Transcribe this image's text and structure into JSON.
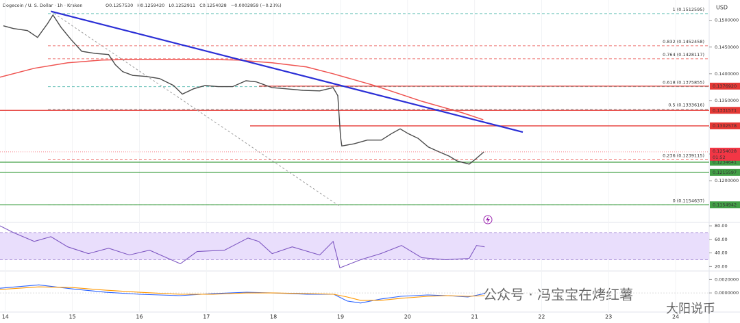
{
  "header": {
    "symbol": "Dogecoin / U. S. Dollar · 1h · Kraken",
    "ohlc": [
      "O0.1257530",
      "H0.1259420",
      "L0.1252911",
      "C0.1254028",
      "−0.0002859 (−0.23%)"
    ]
  },
  "currency": "USD",
  "watermark": [
    "公众号 · 冯宝宝在烤红薯",
    "大阳说币"
  ],
  "chart_data": [
    {
      "type": "line",
      "x": [
        13.97,
        14.12,
        14.33,
        14.48,
        14.63,
        14.71,
        14.83,
        14.98,
        15.14,
        15.34,
        15.54,
        15.64,
        15.75,
        15.9,
        16.1,
        16.3,
        16.51,
        16.64,
        16.81,
        16.98,
        17.18,
        17.39,
        17.59,
        17.74,
        17.98,
        18.18,
        18.44,
        18.69,
        18.89,
        18.96,
        19.0,
        19.02,
        19.2,
        19.4,
        19.61,
        19.76,
        19.89,
        20.01,
        20.16,
        20.31,
        20.47,
        20.62,
        20.74,
        20.92,
        21.02,
        21.14
      ],
      "series": [
        {
          "color": "#4a4a4a",
          "values": [
            0.14897,
            0.14846,
            0.14808,
            0.1468,
            0.1494,
            0.151,
            0.1487,
            0.1464,
            0.1442,
            0.1438,
            0.1436,
            0.1417,
            0.1404,
            0.1397,
            0.1395,
            0.1391,
            0.1378,
            0.1362,
            0.1372,
            0.1378,
            0.1376,
            0.1376,
            0.1387,
            0.1385,
            0.1374,
            0.1372,
            0.1369,
            0.1368,
            0.1374,
            0.1359,
            0.1282,
            0.1265,
            0.1269,
            0.1276,
            0.1276,
            0.1288,
            0.1297,
            0.1288,
            0.1279,
            0.1263,
            0.1254,
            0.1246,
            0.1237,
            0.1231,
            0.1241,
            0.1254028
          ]
        }
      ],
      "moving_average": {
        "color": "#ef5350",
        "x": [
          13.92,
          14.43,
          14.93,
          15.44,
          15.95,
          16.96,
          17.47,
          17.98,
          18.49,
          18.89,
          19.5,
          20.21,
          20.82,
          21.13
        ],
        "values": [
          0.13936,
          0.14103,
          0.14205,
          0.14256,
          0.14269,
          0.14269,
          0.14256,
          0.14205,
          0.14128,
          0.14,
          0.13782,
          0.13487,
          0.13269,
          0.13141
        ]
      },
      "trendline": {
        "color": "#2b2fd6",
        "x": [
          14.68,
          21.72
        ],
        "values": [
          0.15167,
          0.1291
        ]
      },
      "projection": {
        "color": "#9e9e9e",
        "x": [
          14.68,
          19.0
        ],
        "values": [
          0.15167,
          0.1151
        ]
      },
      "levels": [
        {
          "value": 0.137692,
          "label": "0.1376920",
          "color": "#e53935"
        },
        {
          "value": 0.1331571,
          "label": "0.1331571",
          "color": "#e53935"
        },
        {
          "value": 0.1302578,
          "label": "0.1302578",
          "color": "#e53935"
        },
        {
          "value": 0.1234641,
          "label": "0.1234641",
          "color": "#43a047"
        },
        {
          "value": 0.1215597,
          "label": "0.1215597",
          "color": "#43a047"
        },
        {
          "value": 0.1154942,
          "label": "0.1154942",
          "color": "#43a047"
        }
      ],
      "fib_levels": [
        {
          "value": 0.1512595,
          "label": "1 (0.1512595)",
          "color": "#26a69a"
        },
        {
          "value": 0.1452458,
          "label": "0.832 (0.1452458)",
          "color": "#e53935"
        },
        {
          "value": 0.1428117,
          "label": "0.764 (0.1428117)",
          "color": "#e53935"
        },
        {
          "value": 0.1375855,
          "label": "0.618 (0.1375855)",
          "color": "#26a69a"
        },
        {
          "value": 0.1333616,
          "label": "0.5 (0.1333616)",
          "color": "#555555"
        },
        {
          "value": 0.1239115,
          "label": "0.236 (0.1239115)",
          "color": "#e53935"
        },
        {
          "value": 0.1154637,
          "label": "0 (0.1154637)",
          "color": "#777777"
        }
      ],
      "price_label": {
        "value": 0.1254028,
        "label": "0.1254028",
        "countdown": "01:52",
        "color": "#f23645"
      },
      "xlim": [
        13.92,
        24.5
      ],
      "xticks": [
        14,
        15,
        16,
        17,
        18,
        19,
        20,
        21,
        22,
        23,
        24
      ],
      "ylim": [
        0.1122,
        0.1538
      ],
      "yticks": [
        {
          "value": 0.15,
          "label": "0.1500000"
        },
        {
          "value": 0.145,
          "label": "0.1450000"
        },
        {
          "value": 0.14,
          "label": "0.1400000"
        },
        {
          "value": 0.135,
          "label": "0.1350000"
        },
        {
          "value": 0.13,
          "label": "0.1300000"
        },
        {
          "value": 0.125,
          "label": "0.1250000"
        },
        {
          "value": 0.12,
          "label": "0.1200000"
        }
      ]
    },
    {
      "type": "line",
      "x": [
        13.92,
        14.12,
        14.43,
        14.68,
        14.93,
        15.24,
        15.54,
        15.85,
        16.15,
        16.61,
        16.86,
        17.27,
        17.62,
        17.78,
        17.98,
        18.28,
        18.69,
        18.89,
        18.99,
        19.3,
        19.6,
        19.91,
        20.21,
        20.57,
        20.92,
        21.03,
        21.15
      ],
      "series": [
        {
          "color": "#7e57c2",
          "values": [
            80,
            70,
            57,
            64,
            49,
            39,
            47,
            37,
            44,
            24,
            42,
            44,
            62,
            57,
            39,
            49,
            37,
            57,
            18,
            30,
            39,
            51,
            33,
            30,
            32,
            51,
            49
          ]
        }
      ],
      "band": [
        30,
        70
      ],
      "band_color": "#e9defc",
      "ylim": [
        13.3,
        85.1
      ],
      "yticks": [
        {
          "value": 80,
          "label": "80.00"
        },
        {
          "value": 60,
          "label": "60.00"
        },
        {
          "value": 40,
          "label": "40.00"
        },
        {
          "value": 20,
          "label": "20.00"
        }
      ]
    },
    {
      "type": "line",
      "x": [
        13.92,
        14.5,
        15.0,
        15.5,
        16.0,
        16.6,
        17.1,
        17.6,
        18.0,
        18.5,
        18.9,
        19.1,
        19.3,
        19.6,
        19.9,
        20.3,
        20.6,
        20.9,
        21.15
      ],
      "series": [
        {
          "color": "#2962ff",
          "values": [
            0.0007,
            0.0012,
            0.0006,
            0.0001,
            -0.0002,
            -0.0004,
            -0.0001,
            0.0001,
            0.0,
            -0.0002,
            -0.0002,
            -0.0012,
            -0.0015,
            -0.0009,
            -0.0005,
            -0.0003,
            -0.0004,
            -0.0006,
            -0.0001
          ]
        },
        {
          "color": "#ff9800",
          "values": [
            0.0005,
            0.0009,
            0.0008,
            0.0004,
            0.0001,
            -0.0002,
            -0.0002,
            0.0,
            0.0,
            -0.0001,
            -0.0002,
            -0.0006,
            -0.0011,
            -0.0011,
            -0.0008,
            -0.0005,
            -0.0004,
            -0.0005,
            -0.0004
          ]
        }
      ],
      "ylim": [
        -0.00284,
        0.00326
      ],
      "yticks": [
        {
          "value": 0.002,
          "label": "0.0020000"
        },
        {
          "value": 0,
          "label": "0.0000000"
        }
      ]
    }
  ]
}
